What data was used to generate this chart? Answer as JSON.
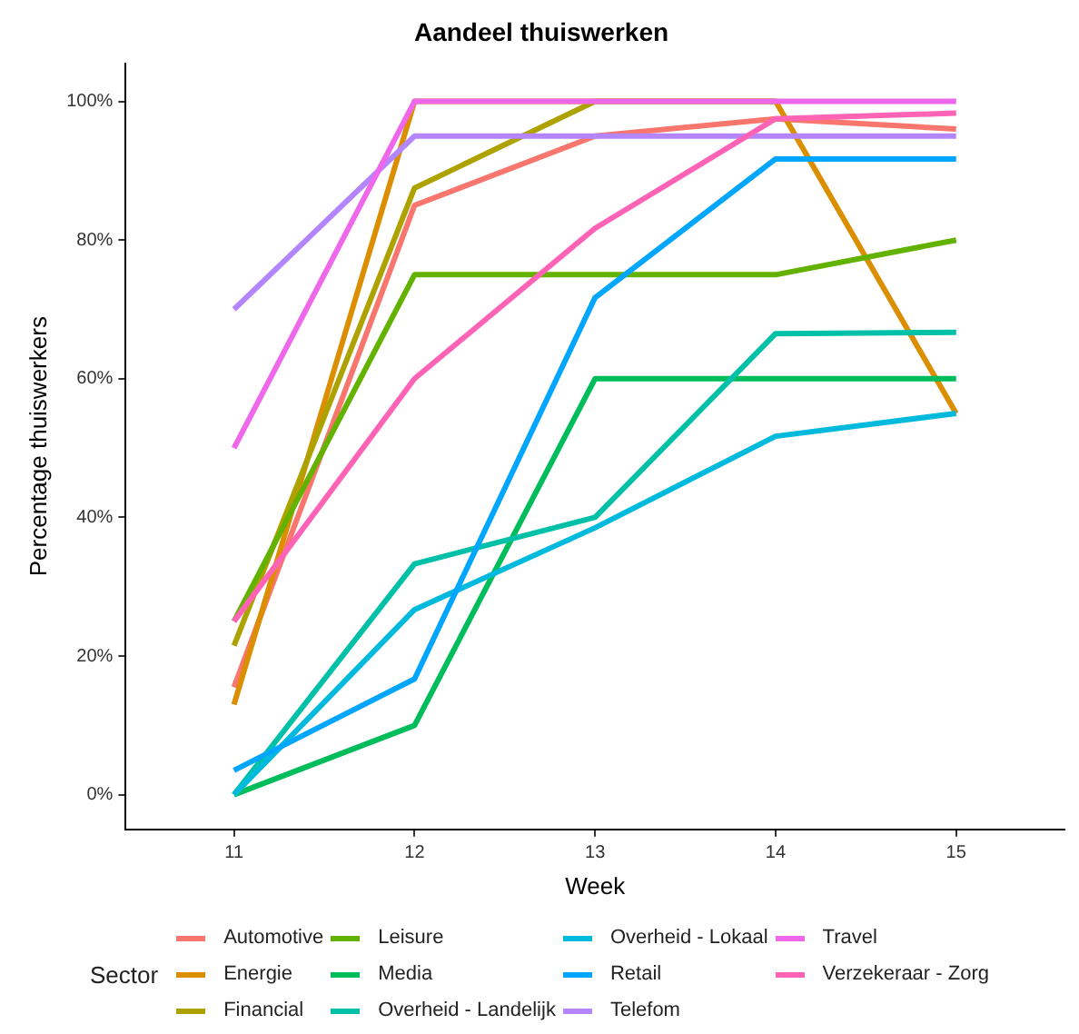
{
  "chart_data": {
    "type": "line",
    "title": "Aandeel thuiswerken",
    "xlabel": "Week",
    "ylabel": "Percentage thuiswerkers",
    "legend_title": "Sector",
    "x": [
      11,
      12,
      13,
      14,
      15
    ],
    "xlim": [
      10.4,
      15.6
    ],
    "xticks": [
      11,
      12,
      13,
      14,
      15
    ],
    "ylim": [
      -5,
      105.5
    ],
    "yticks": [
      {
        "value": 0,
        "label": "0%"
      },
      {
        "value": 20,
        "label": "20%"
      },
      {
        "value": 40,
        "label": "40%"
      },
      {
        "value": 60,
        "label": "60%"
      },
      {
        "value": 80,
        "label": "80%"
      },
      {
        "value": 100,
        "label": "100%"
      }
    ],
    "grid": false,
    "legend": "bottom",
    "marker": "none",
    "line_style": "solid",
    "series": [
      {
        "name": "Automotive",
        "color": "#f8766d",
        "values": [
          15.5,
          85,
          95,
          97.5,
          96
        ]
      },
      {
        "name": "Energie",
        "color": "#db8e00",
        "values": [
          13,
          100,
          100,
          100,
          55
        ]
      },
      {
        "name": "Financial",
        "color": "#aea200",
        "values": [
          21.5,
          87.5,
          100,
          100,
          null
        ]
      },
      {
        "name": "Leisure",
        "color": "#64b200",
        "values": [
          25,
          75,
          75,
          75,
          80
        ]
      },
      {
        "name": "Media",
        "color": "#00bd5c",
        "values": [
          0,
          10,
          60,
          60,
          60
        ]
      },
      {
        "name": "Overheid - Landelijk",
        "color": "#00c1a7",
        "values": [
          0,
          33.3,
          40,
          66.5,
          66.7
        ]
      },
      {
        "name": "Overheid - Lokaal",
        "color": "#00bade",
        "values": [
          0,
          26.7,
          38.5,
          51.7,
          55
        ]
      },
      {
        "name": "Retail",
        "color": "#00a6ff",
        "values": [
          3.5,
          16.7,
          71.7,
          91.7,
          91.7
        ]
      },
      {
        "name": "Telefom",
        "color": "#b385ff",
        "values": [
          70,
          95,
          95,
          95,
          95
        ]
      },
      {
        "name": "Travel",
        "color": "#ef67eb",
        "values": [
          50,
          100,
          100,
          100,
          100
        ]
      },
      {
        "name": "Verzekeraar - Zorg",
        "color": "#ff63b6",
        "values": [
          25,
          60,
          81.7,
          97.5,
          98.3
        ]
      }
    ]
  }
}
